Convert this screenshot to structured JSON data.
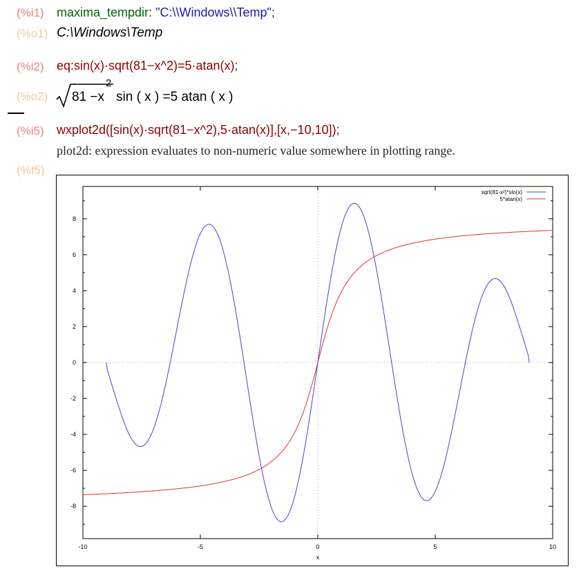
{
  "cells": {
    "i1": {
      "label": "(%i1)",
      "name": "maxima_tempdir",
      "colon": ": ",
      "string": "\"C:\\\\Windows\\\\Temp\"",
      "semi": ";"
    },
    "o1": {
      "label": "(%o1)",
      "value": "C:\\Windows\\Temp"
    },
    "i2": {
      "label": "(%i2)",
      "code": "eq:sin(x)·sqrt(81−x^2)=5·atan(x);"
    },
    "o2": {
      "label": "(%o2)",
      "radicand_base": "81 −x",
      "exponent": "2",
      "rest": "sin ( x ) =5 atan ( x )"
    },
    "i5": {
      "label": "(%i5)",
      "code": "wxplot2d([sin(x)·sqrt(81−x^2),5·atan(x)],[x,−10,10]);"
    },
    "t5": {
      "label": "(%t5)",
      "message": "plot2d: expression evaluates to non-numeric value somewhere in plotting range."
    }
  },
  "chart_data": {
    "type": "line",
    "xlabel": "x",
    "ylabel": "",
    "xlim": [
      -10,
      10
    ],
    "ylim": [
      -9.8,
      9.8
    ],
    "xticks": [
      -10,
      -5,
      0,
      5,
      10
    ],
    "yticks": [
      -8,
      -6,
      -4,
      -2,
      0,
      2,
      4,
      6,
      8
    ],
    "legend_position": "top-right",
    "zero_axes": "dotted",
    "series": [
      {
        "name": "sqrt(81-x²)*sin(x)",
        "color": "#4040e0",
        "domain": [
          -9,
          9
        ],
        "function": "sqrt(81-x^2)*sin(x)"
      },
      {
        "name": "5*atan(x)",
        "color": "#e03030",
        "domain": [
          -10,
          10
        ],
        "function": "5*atan(x)"
      }
    ]
  }
}
